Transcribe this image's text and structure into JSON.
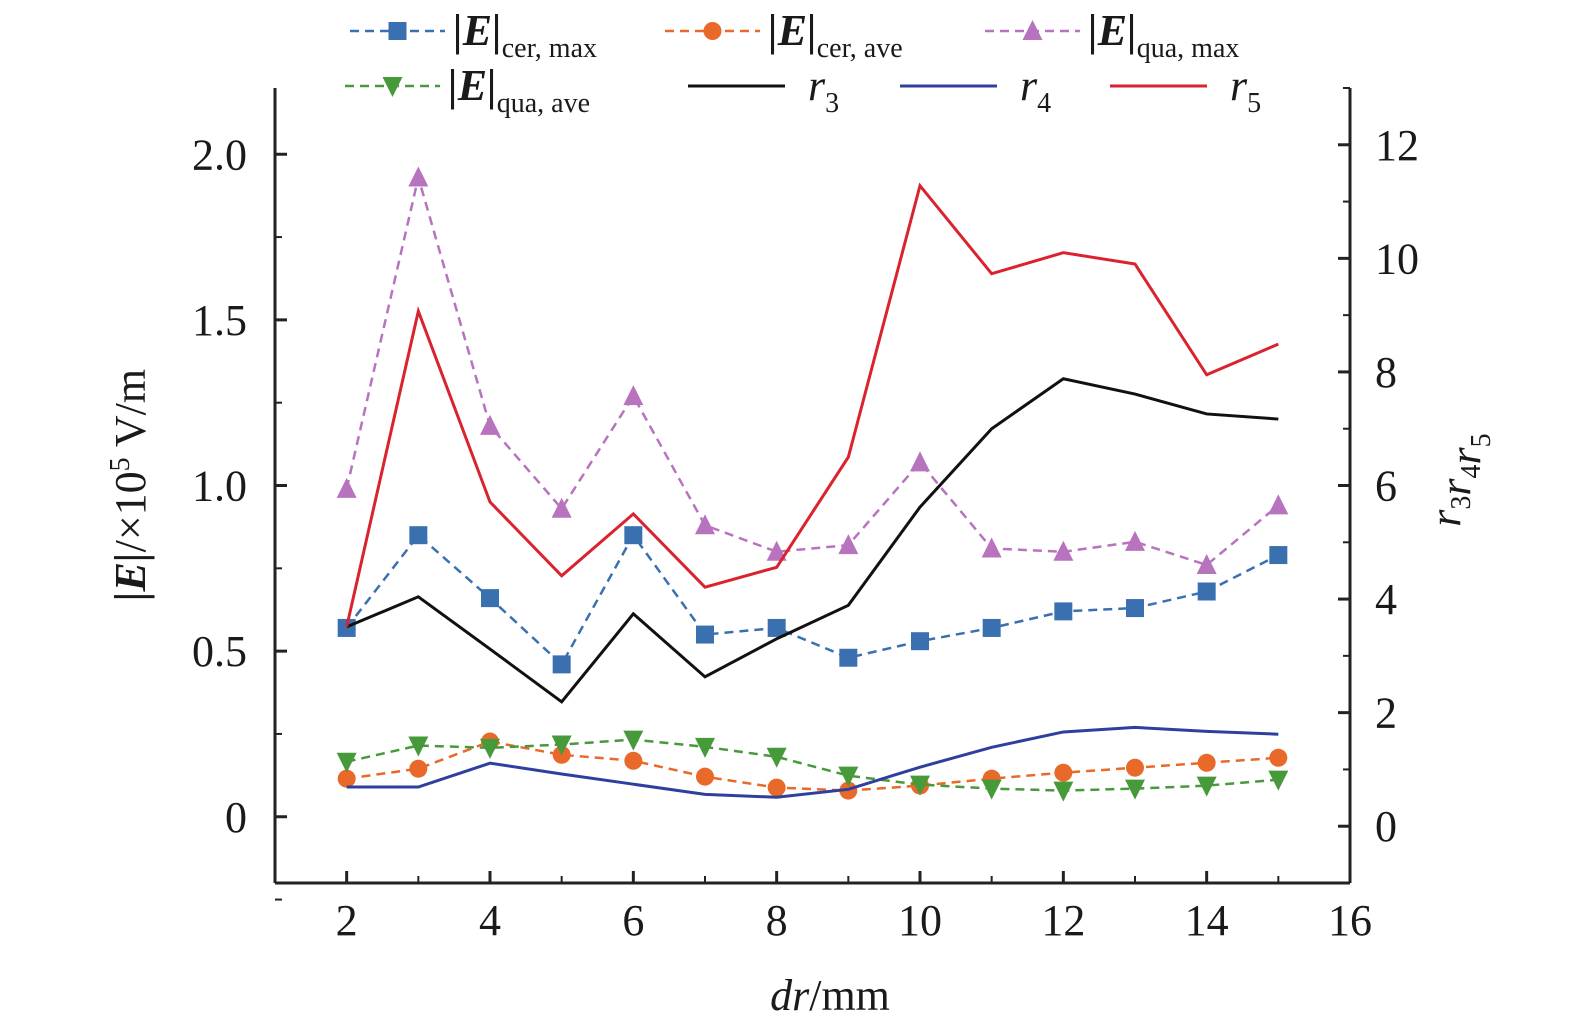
{
  "chart_data": {
    "type": "line",
    "x": [
      2,
      3,
      4,
      5,
      6,
      7,
      8,
      9,
      10,
      11,
      12,
      13,
      14,
      15
    ],
    "xlabel": {
      "italic": "dr",
      "rest": "/mm"
    },
    "ylabel_left": {
      "bold": "|E|",
      "mid": "/×10",
      "exp": "5",
      "unit": " V/m"
    },
    "ylabel_right": [
      {
        "base": "r",
        "sub": "3"
      },
      {
        "base": "r",
        "sub": "4"
      },
      {
        "base": "r",
        "sub": "5"
      }
    ],
    "xlim": [
      1,
      16
    ],
    "ylim_left": [
      -0.2,
      2.2
    ],
    "ylim_right": [
      -1,
      13
    ],
    "xticks": [
      "2",
      "4",
      "6",
      "8",
      "10",
      "12",
      "14",
      "16"
    ],
    "yticks_left": [
      "0",
      "0.5",
      "1.0",
      "1.5",
      "2.0"
    ],
    "yticks_right": [
      "0",
      "2",
      "4",
      "6",
      "8",
      "10",
      "12"
    ],
    "grid": false,
    "legend_placement": "top",
    "series": [
      {
        "name": {
          "main": "|E|",
          "sub": "cer, max"
        },
        "axis": "left",
        "color": "#3a70b0",
        "dash": true,
        "marker": "square",
        "values": [
          0.57,
          0.85,
          0.66,
          0.46,
          0.85,
          0.55,
          0.57,
          0.48,
          0.53,
          0.57,
          0.62,
          0.63,
          0.68,
          0.79
        ]
      },
      {
        "name": {
          "main": "|E|",
          "sub": "cer, ave"
        },
        "axis": "left",
        "color": "#e8692a",
        "dash": true,
        "marker": "circle",
        "values": [
          0.115,
          0.145,
          0.227,
          0.187,
          0.169,
          0.121,
          0.088,
          0.079,
          0.094,
          0.115,
          0.133,
          0.148,
          0.163,
          0.178
        ]
      },
      {
        "name": {
          "main": "|E|",
          "sub": "qua, max"
        },
        "axis": "left",
        "color": "#b873bf",
        "dash": true,
        "marker": "triangle-up",
        "values": [
          0.99,
          1.93,
          1.18,
          0.93,
          1.27,
          0.88,
          0.8,
          0.82,
          1.07,
          0.81,
          0.8,
          0.83,
          0.76,
          0.94
        ]
      },
      {
        "name": {
          "main": "|E|",
          "sub": "qua, ave"
        },
        "axis": "left",
        "color": "#469a3a",
        "dash": true,
        "marker": "triangle-down",
        "values": [
          0.166,
          0.215,
          0.208,
          0.218,
          0.233,
          0.211,
          0.181,
          0.124,
          0.097,
          0.085,
          0.079,
          0.085,
          0.094,
          0.112
        ]
      },
      {
        "name": {
          "main": "r",
          "sub": "3"
        },
        "axis": "right",
        "color": "#111111",
        "dash": false,
        "marker": "none",
        "values": [
          3.51,
          4.04,
          3.12,
          2.19,
          3.74,
          2.63,
          3.3,
          3.89,
          5.62,
          7.0,
          7.88,
          7.61,
          7.26,
          7.17
        ]
      },
      {
        "name": {
          "main": "r",
          "sub": "4"
        },
        "axis": "right",
        "color": "#2f3f9e",
        "dash": false,
        "marker": "none",
        "values": [
          0.69,
          0.69,
          1.11,
          0.92,
          0.74,
          0.56,
          0.51,
          0.65,
          1.04,
          1.39,
          1.66,
          1.74,
          1.67,
          1.62
        ]
      },
      {
        "name": {
          "main": "r",
          "sub": "5"
        },
        "axis": "right",
        "color": "#d9232e",
        "dash": false,
        "marker": "none",
        "values": [
          3.51,
          9.07,
          5.71,
          4.41,
          5.5,
          4.21,
          4.56,
          6.5,
          11.28,
          9.73,
          10.1,
          9.9,
          7.95,
          8.49
        ]
      }
    ]
  }
}
